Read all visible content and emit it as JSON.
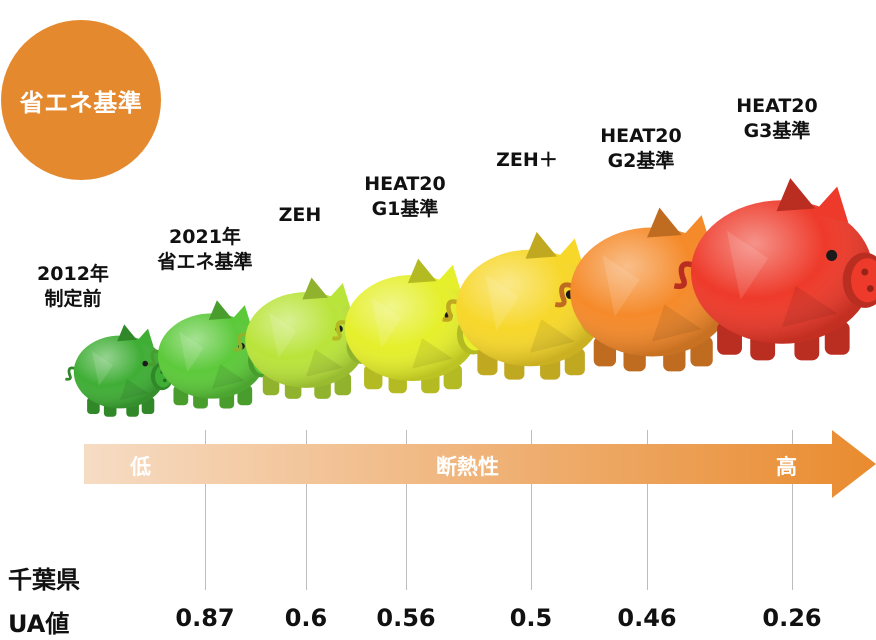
{
  "badge": {
    "label": "省エネ基準",
    "color": "#e4892e"
  },
  "levels": [
    {
      "label": "2012年\n制定前",
      "color": "#3fae35"
    },
    {
      "label": "2021年\n省エネ基準",
      "color": "#5cc93a"
    },
    {
      "label": "ZEH",
      "color": "#b9e43a"
    },
    {
      "label": "HEAT20\nG1基準",
      "color": "#e5ef2b"
    },
    {
      "label": "ZEH＋",
      "color": "#f7d72a"
    },
    {
      "label": "HEAT20\nG2基準",
      "color": "#f58a2a"
    },
    {
      "label": "HEAT20\nG3基準",
      "color": "#ee3a2a"
    }
  ],
  "axis": {
    "low": "低",
    "middle": "断熱性",
    "high": "高",
    "color_start": "#f6dcc4",
    "color_end": "#e98b2f"
  },
  "ua_table": {
    "title_line1": "千葉県",
    "title_line2": "UA値",
    "values": [
      "0.87",
      "0.6",
      "0.56",
      "0.5",
      "0.46",
      "0.26"
    ]
  }
}
